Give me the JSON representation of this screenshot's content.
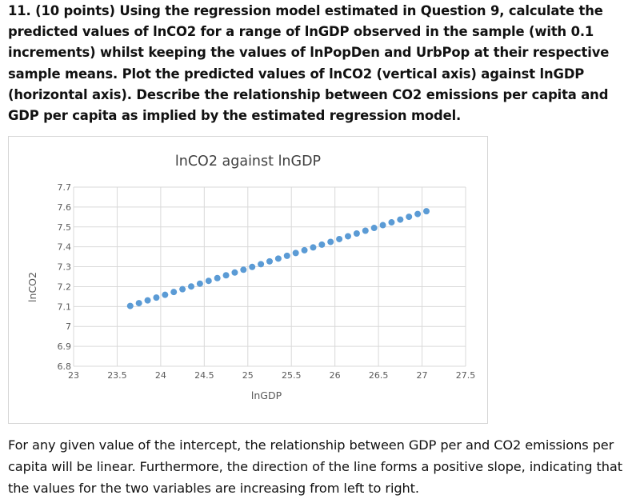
{
  "question": {
    "text": "11. (10 points) Using the regression model estimated in Question 9, calculate the predicted values of lnCO2 for a range of lnGDP observed in the sample (with 0.1 increments) whilst keeping the values of lnPopDen and UrbPop at their respective sample means.  Plot the predicted values of lnCO2 (vertical axis) against lnGDP (horizontal axis).  Describe the relationship between CO2 emissions per capita and GDP per capita as implied by the estimated regression model."
  },
  "chart_data": {
    "type": "scatter",
    "title": "lnCO2 against lnGDP",
    "xlabel": "lnGDP",
    "ylabel": "lnCO2",
    "xlim": [
      23,
      27.5
    ],
    "ylim": [
      6.8,
      7.7
    ],
    "xticks": [
      "23",
      "23.5",
      "24",
      "24.5",
      "25",
      "25.5",
      "26",
      "26.5",
      "27",
      "27.5"
    ],
    "yticks": [
      "6.8",
      "6.9",
      "7",
      "7.1",
      "7.2",
      "7.3",
      "7.4",
      "7.5",
      "7.6",
      "7.7"
    ],
    "grid": true,
    "series": [
      {
        "name": "lnCO2",
        "color": "#5b9bd5",
        "x": [
          23.65,
          23.75,
          23.85,
          23.95,
          24.05,
          24.15,
          24.25,
          24.35,
          24.45,
          24.55,
          24.65,
          24.75,
          24.85,
          24.95,
          25.05,
          25.15,
          25.25,
          25.35,
          25.45,
          25.55,
          25.65,
          25.75,
          25.85,
          25.95,
          26.05,
          26.15,
          26.25,
          26.35,
          26.45,
          26.55,
          26.65,
          26.75,
          26.85,
          26.95,
          27.05
        ],
        "y": [
          7.103,
          7.117,
          7.131,
          7.145,
          7.159,
          7.173,
          7.187,
          7.201,
          7.215,
          7.229,
          7.243,
          7.257,
          7.271,
          7.285,
          7.299,
          7.313,
          7.327,
          7.341,
          7.355,
          7.369,
          7.383,
          7.397,
          7.411,
          7.425,
          7.439,
          7.453,
          7.467,
          7.481,
          7.495,
          7.509,
          7.523,
          7.537,
          7.551,
          7.565,
          7.579
        ]
      }
    ]
  },
  "answer": {
    "text": "For any given value of the intercept, the relationship between GDP per and CO2 emissions per capita will be linear. Furthermore, the direction of the line forms a positive slope, indicating that the values for the two variables are increasing from left to right."
  }
}
